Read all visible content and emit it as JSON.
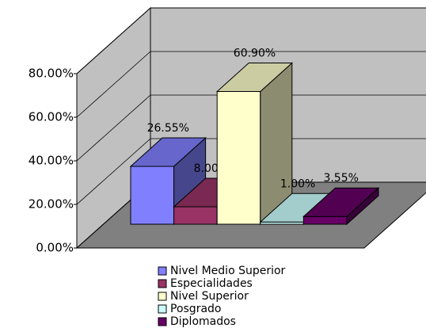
{
  "chart_data": {
    "type": "bar3d",
    "categories": [
      "Nivel Medio Superior",
      "Especialidades",
      "Nivel Superior",
      "Posgrado",
      "Diplomados"
    ],
    "values": [
      26.55,
      8.0,
      60.9,
      1.0,
      3.55
    ],
    "value_labels": [
      "26.55%",
      "8.00%",
      "60.90%",
      "1.00%",
      "3.55%"
    ],
    "colors": [
      "#8080ff",
      "#993366",
      "#ffffcc",
      "#ccffff",
      "#660066"
    ],
    "ylim": [
      0,
      80
    ],
    "yticks": [
      {
        "value": 0,
        "label": "0.00%"
      },
      {
        "value": 20,
        "label": "20.00%"
      },
      {
        "value": 40,
        "label": "40.00%"
      },
      {
        "value": 60,
        "label": "60.00%"
      },
      {
        "value": 80,
        "label": "80.00%"
      }
    ],
    "grid": true,
    "legend": "bottom"
  }
}
